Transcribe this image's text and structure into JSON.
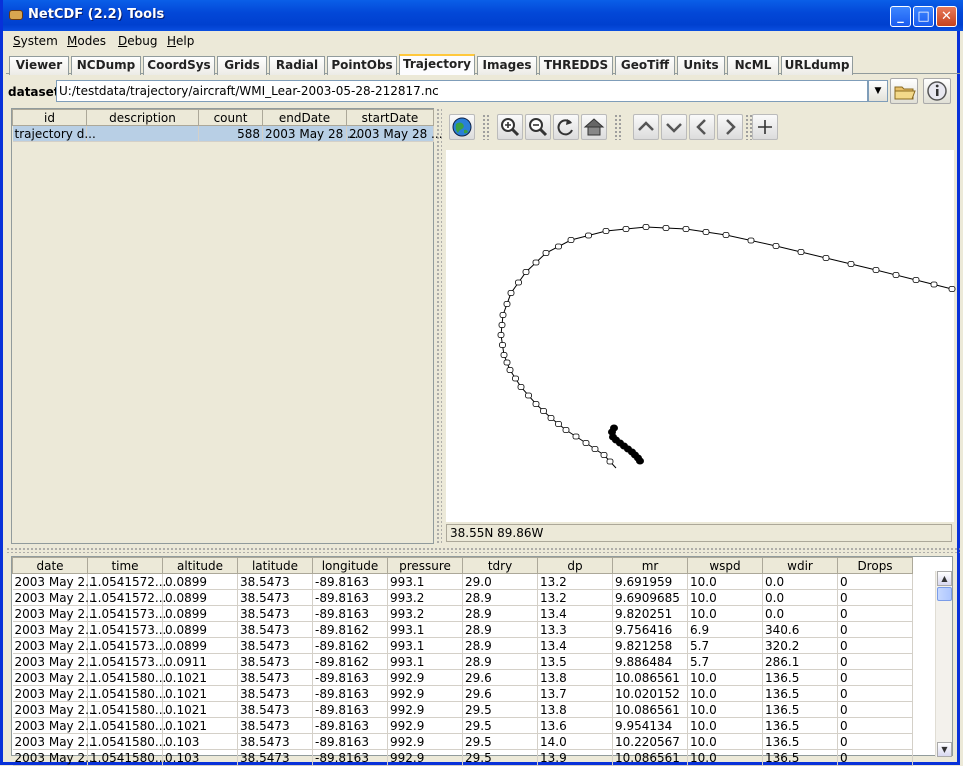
{
  "window": {
    "title": "NetCDF (2.2) Tools"
  },
  "menubar": {
    "items": [
      {
        "label": "System",
        "mnemonic": "S",
        "rest": "ystem"
      },
      {
        "label": "Modes",
        "mnemonic": "M",
        "rest": "odes"
      },
      {
        "label": "Debug",
        "mnemonic": "D",
        "rest": "ebug"
      },
      {
        "label": "Help",
        "mnemonic": "H",
        "rest": "elp"
      }
    ]
  },
  "tabs": [
    "Viewer",
    "NCDump",
    "CoordSys",
    "Grids",
    "Radial",
    "PointObs",
    "Trajectory",
    "Images",
    "THREDDS",
    "GeoTiff",
    "Units",
    "NcML",
    "URLdump"
  ],
  "active_tab": "Trajectory",
  "dataset": {
    "label": "dataset:",
    "value": "U:/testdata/trajectory/aircraft/WMI_Lear-2003-05-28-212817.nc"
  },
  "trajectory_table": {
    "columns": [
      "id",
      "description",
      "count",
      "endDate",
      "startDate"
    ],
    "rows": [
      [
        "trajectory d...",
        "",
        "588",
        "2003 May 28 ...",
        "2003 May 28 ..."
      ]
    ]
  },
  "map": {
    "status": "38.55N 89.86W"
  },
  "icons": {
    "globe": "globe-icon",
    "zoom_in": "zoom-in-icon",
    "zoom_out": "zoom-out-icon",
    "reset": "refresh-icon",
    "home": "home-icon",
    "up": "up-icon",
    "down": "down-icon",
    "left": "left-icon",
    "right": "right-icon",
    "plus": "plus-icon",
    "folder": "folder-icon",
    "info": "info-icon"
  },
  "data_table": {
    "columns": [
      "date",
      "time",
      "altitude",
      "latitude",
      "longitude",
      "pressure",
      "tdry",
      "dp",
      "mr",
      "wspd",
      "wdir",
      "Drops"
    ],
    "rows": [
      [
        "2003 May 2...",
        "1.0541572...",
        "0.0899",
        "38.5473",
        "-89.8163",
        "993.1",
        "29.0",
        "13.2",
        "9.691959",
        "10.0",
        "0.0",
        "0"
      ],
      [
        "2003 May 2...",
        "1.0541572...",
        "0.0899",
        "38.5473",
        "-89.8163",
        "993.2",
        "28.9",
        "13.2",
        "9.6909685",
        "10.0",
        "0.0",
        "0"
      ],
      [
        "2003 May 2...",
        "1.0541573...",
        "0.0899",
        "38.5473",
        "-89.8163",
        "993.2",
        "28.9",
        "13.4",
        "9.820251",
        "10.0",
        "0.0",
        "0"
      ],
      [
        "2003 May 2...",
        "1.0541573...",
        "0.0899",
        "38.5473",
        "-89.8162",
        "993.1",
        "28.9",
        "13.3",
        "9.756416",
        "6.9",
        "340.6",
        "0"
      ],
      [
        "2003 May 2...",
        "1.0541573...",
        "0.0899",
        "38.5473",
        "-89.8162",
        "993.1",
        "28.9",
        "13.4",
        "9.821258",
        "5.7",
        "320.2",
        "0"
      ],
      [
        "2003 May 2...",
        "1.0541573...",
        "0.0911",
        "38.5473",
        "-89.8162",
        "993.1",
        "28.9",
        "13.5",
        "9.886484",
        "5.7",
        "286.1",
        "0"
      ],
      [
        "2003 May 2...",
        "1.0541580...",
        "0.1021",
        "38.5473",
        "-89.8163",
        "992.9",
        "29.6",
        "13.8",
        "10.086561",
        "10.0",
        "136.5",
        "0"
      ],
      [
        "2003 May 2...",
        "1.0541580...",
        "0.1021",
        "38.5473",
        "-89.8163",
        "992.9",
        "29.6",
        "13.7",
        "10.020152",
        "10.0",
        "136.5",
        "0"
      ],
      [
        "2003 May 2...",
        "1.0541580...",
        "0.1021",
        "38.5473",
        "-89.8163",
        "992.9",
        "29.5",
        "13.8",
        "10.086561",
        "10.0",
        "136.5",
        "0"
      ],
      [
        "2003 May 2...",
        "1.0541580...",
        "0.1021",
        "38.5473",
        "-89.8163",
        "992.9",
        "29.5",
        "13.6",
        "9.954134",
        "10.0",
        "136.5",
        "0"
      ],
      [
        "2003 May 2...",
        "1.0541580...",
        "0.103",
        "38.5473",
        "-89.8163",
        "992.9",
        "29.5",
        "14.0",
        "10.220567",
        "10.0",
        "136.5",
        "0"
      ],
      [
        "2003 May 2...",
        "1.0541580...",
        "0.103",
        "38.5473",
        "-89.8163",
        "992.9",
        "29.5",
        "13.9",
        "10.086561",
        "10.0",
        "136.5",
        "0"
      ]
    ]
  }
}
